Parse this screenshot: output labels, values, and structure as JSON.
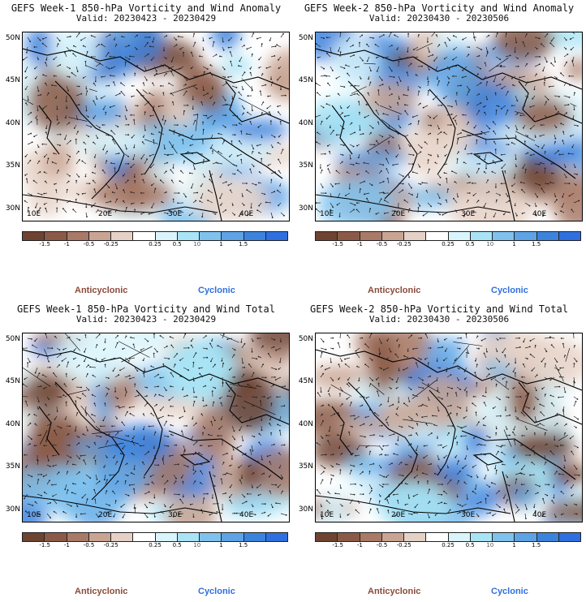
{
  "panels": [
    {
      "title": "GEFS Week-1 850-hPa Vorticity and Wind Anomaly",
      "valid": "Valid: 20230423 - 20230429"
    },
    {
      "title": "GEFS Week-2 850-hPa Vorticity and Wind Anomaly",
      "valid": "Valid: 20230430 - 20230506"
    },
    {
      "title": "GEFS Week-1 850-hPa Vorticity and Wind Total",
      "valid": "Valid: 20230423 - 20230429"
    },
    {
      "title": "GEFS Week-2 850-hPa Vorticity and Wind Total",
      "valid": "Valid: 20230430 - 20230506"
    }
  ],
  "axes": {
    "lat_labels": [
      "50N",
      "45N",
      "40N",
      "35N",
      "30N"
    ],
    "lon_labels": [
      "10E",
      "20E",
      "30E",
      "40E"
    ]
  },
  "colorbar": {
    "labels": [
      "-1.5",
      "-1",
      "-0.5",
      "-0.25",
      "0.25",
      "0.5",
      "1",
      "1.5"
    ],
    "wind_scale": "10",
    "colors": [
      "#6e4331",
      "#8b5a47",
      "#a87a67",
      "#c9a493",
      "#e6d1c6",
      "#ffffff",
      "#d9f4fb",
      "#a8e4f6",
      "#7fc2ee",
      "#5da3e6",
      "#3c83de",
      "#2f6fdf"
    ]
  },
  "legend": {
    "anticyclonic": "Anticyclonic",
    "cyclonic": "Cyclonic",
    "anticyclonic_color": "#8b4a3a",
    "cyclonic_color": "#2f6fdf"
  }
}
